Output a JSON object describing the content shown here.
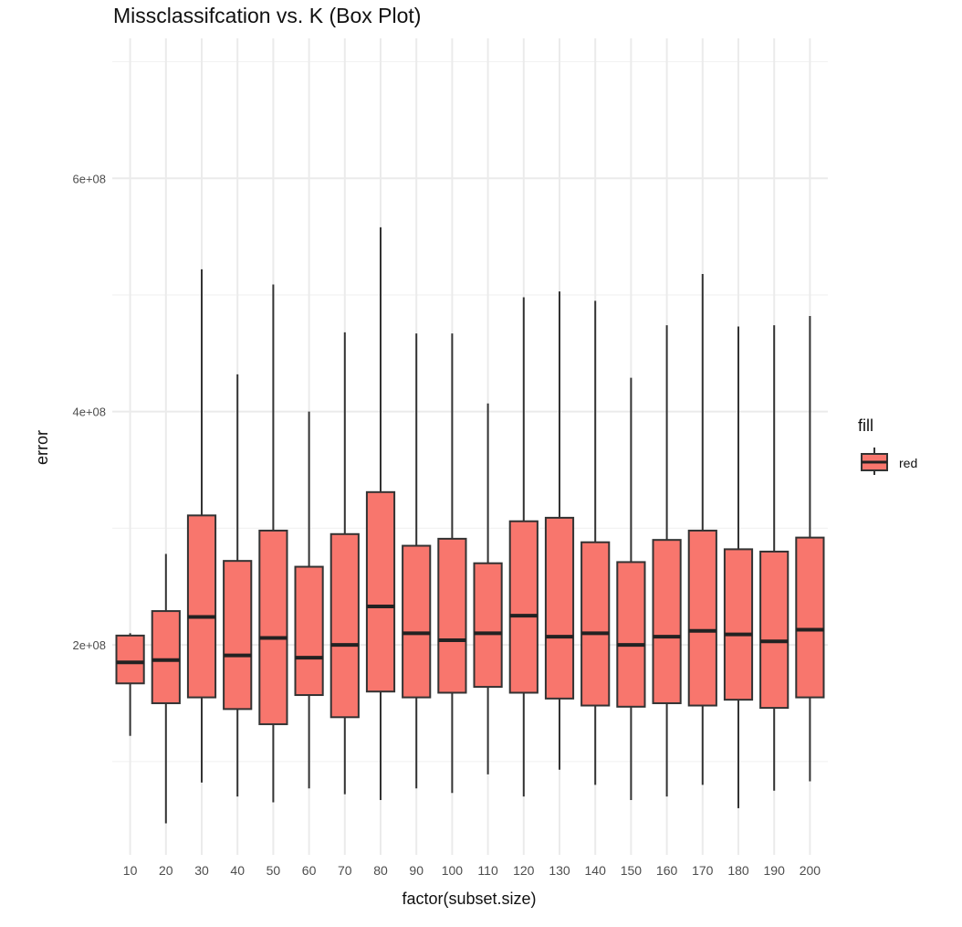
{
  "chart_data": {
    "type": "box",
    "title": "Missclassifcation vs. K (Box Plot)",
    "xlabel": "factor(subset.size)",
    "ylabel": "error",
    "ylim": [
      20000000,
      720000000
    ],
    "yticks": [
      200000000,
      400000000,
      600000000
    ],
    "ytick_labels": [
      "2e+08",
      "4e+08",
      "6e+08"
    ],
    "grid": true,
    "fill_color": "#F8766D",
    "outline_color": "#333333",
    "legend": {
      "title": "fill",
      "position": "right",
      "entries": [
        "red"
      ]
    },
    "categories": [
      "10",
      "20",
      "30",
      "40",
      "50",
      "60",
      "70",
      "80",
      "90",
      "100",
      "110",
      "120",
      "130",
      "140",
      "150",
      "160",
      "170",
      "180",
      "190",
      "200"
    ],
    "boxes": [
      {
        "min": 122000000,
        "q1": 167000000,
        "median": 185000000,
        "q3": 208000000,
        "max": 210000000
      },
      {
        "min": 47000000,
        "q1": 150000000,
        "median": 187000000,
        "q3": 229000000,
        "max": 278000000
      },
      {
        "min": 82000000,
        "q1": 155000000,
        "median": 224000000,
        "q3": 311000000,
        "max": 522000000
      },
      {
        "min": 70000000,
        "q1": 145000000,
        "median": 191000000,
        "q3": 272000000,
        "max": 432000000
      },
      {
        "min": 65000000,
        "q1": 132000000,
        "median": 206000000,
        "q3": 298000000,
        "max": 509000000
      },
      {
        "min": 77000000,
        "q1": 157000000,
        "median": 189000000,
        "q3": 267000000,
        "max": 400000000
      },
      {
        "min": 72000000,
        "q1": 138000000,
        "median": 200000000,
        "q3": 295000000,
        "max": 468000000
      },
      {
        "min": 67000000,
        "q1": 160000000,
        "median": 233000000,
        "q3": 331000000,
        "max": 558000000
      },
      {
        "min": 77000000,
        "q1": 155000000,
        "median": 210000000,
        "q3": 285000000,
        "max": 467000000
      },
      {
        "min": 73000000,
        "q1": 159000000,
        "median": 204000000,
        "q3": 291000000,
        "max": 467000000
      },
      {
        "min": 89000000,
        "q1": 164000000,
        "median": 210000000,
        "q3": 270000000,
        "max": 407000000
      },
      {
        "min": 70000000,
        "q1": 159000000,
        "median": 225000000,
        "q3": 306000000,
        "max": 498000000
      },
      {
        "min": 93000000,
        "q1": 154000000,
        "median": 207000000,
        "q3": 309000000,
        "max": 503000000
      },
      {
        "min": 80000000,
        "q1": 148000000,
        "median": 210000000,
        "q3": 288000000,
        "max": 495000000
      },
      {
        "min": 67000000,
        "q1": 147000000,
        "median": 200000000,
        "q3": 271000000,
        "max": 429000000
      },
      {
        "min": 70000000,
        "q1": 150000000,
        "median": 207000000,
        "q3": 290000000,
        "max": 474000000
      },
      {
        "min": 80000000,
        "q1": 148000000,
        "median": 212000000,
        "q3": 298000000,
        "max": 518000000
      },
      {
        "min": 60000000,
        "q1": 153000000,
        "median": 209000000,
        "q3": 282000000,
        "max": 473000000
      },
      {
        "min": 75000000,
        "q1": 146000000,
        "median": 203000000,
        "q3": 280000000,
        "max": 474000000
      },
      {
        "min": 83000000,
        "q1": 155000000,
        "median": 213000000,
        "q3": 292000000,
        "max": 482000000
      }
    ]
  }
}
